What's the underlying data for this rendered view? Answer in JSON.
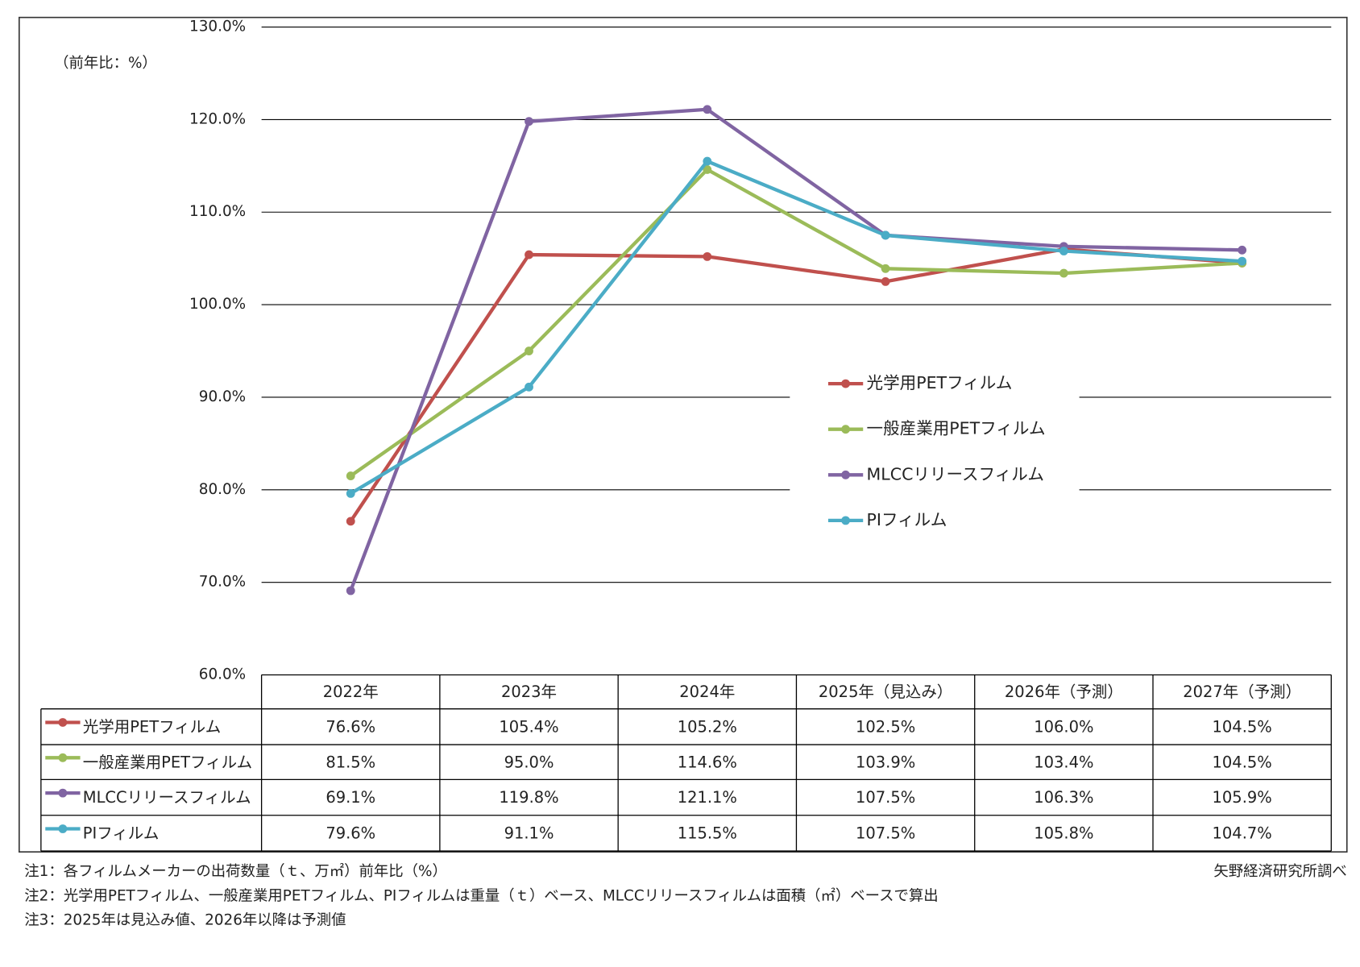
{
  "chart_data": {
    "type": "line",
    "y_label": "（前年比：%）",
    "categories": [
      "2022年",
      "2023年",
      "2024年",
      "2025年（見込み）",
      "2026年（予測）",
      "2027年（予測）"
    ],
    "series": [
      {
        "name": "光学用PETフィルム",
        "color": "#c0504d",
        "values": [
          76.6,
          105.4,
          105.2,
          102.5,
          106.0,
          104.5
        ],
        "value_labels": [
          "76.6%",
          "105.4%",
          "105.2%",
          "102.5%",
          "106.0%",
          "104.5%"
        ]
      },
      {
        "name": "一般産業用PETフィルム",
        "color": "#9bbb59",
        "values": [
          81.5,
          95.0,
          114.6,
          103.9,
          103.4,
          104.5
        ],
        "value_labels": [
          "81.5%",
          "95.0%",
          "114.6%",
          "103.9%",
          "103.4%",
          "104.5%"
        ]
      },
      {
        "name": "MLCCリリースフィルム",
        "color": "#8064a2",
        "values": [
          69.1,
          119.8,
          121.1,
          107.5,
          106.3,
          105.9
        ],
        "value_labels": [
          "69.1%",
          "119.8%",
          "121.1%",
          "107.5%",
          "106.3%",
          "105.9%"
        ]
      },
      {
        "name": "PIフィルム",
        "color": "#4bacc6",
        "values": [
          79.6,
          91.1,
          115.5,
          107.5,
          105.8,
          104.7
        ],
        "value_labels": [
          "79.6%",
          "91.1%",
          "115.5%",
          "107.5%",
          "105.8%",
          "104.7%"
        ]
      }
    ],
    "ylim": [
      60,
      130
    ],
    "yticks": [
      {
        "value": 60,
        "label": "60.0%"
      },
      {
        "value": 70,
        "label": "70.0%"
      },
      {
        "value": 80,
        "label": "80.0%"
      },
      {
        "value": 90,
        "label": "90.0%"
      },
      {
        "value": 100,
        "label": "100.0%"
      },
      {
        "value": 110,
        "label": "110.0%"
      },
      {
        "value": 120,
        "label": "120.0%"
      },
      {
        "value": 130,
        "label": "130.0%"
      }
    ],
    "grid": true,
    "legend": "right",
    "notes": [
      "注1：各フィルムメーカーの出荷数量（ｔ、万㎡）前年比（%）",
      "注2：光学用PETフィルム、一般産業用PETフィルム、PIフィルムは重量（ｔ）ベース、MLCCリリースフィルムは面積（㎡）ベースで算出",
      "注3：2025年は見込み値、2026年以降は予測値"
    ],
    "source": "矢野経済研究所調べ"
  }
}
